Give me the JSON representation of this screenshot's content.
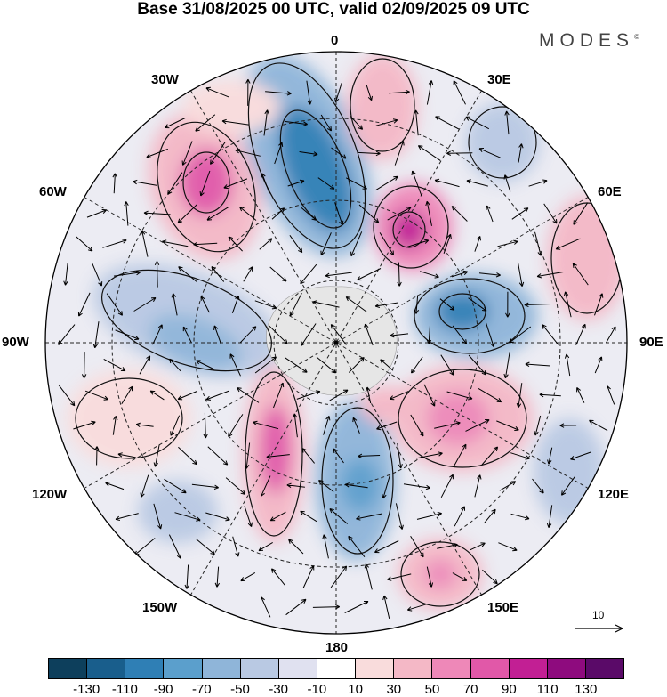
{
  "title": "Base 31/08/2025 00 UTC, valid 02/09/2025 09 UTC",
  "brand": "MODES",
  "brand_mark": "©",
  "longitude_labels": {
    "top": "0",
    "top_right": "30E",
    "right_upper": "60E",
    "right": "90E",
    "right_lower": "120E",
    "bottom_right": "150E",
    "bottom": "180",
    "bottom_left": "150W",
    "left_lower": "120W",
    "left": "90W",
    "left_upper": "60W",
    "top_left": "30W"
  },
  "reference_vector_label": "10",
  "colorbar": {
    "colors": [
      "#0d3f5c",
      "#195e8c",
      "#2f7fb5",
      "#5b9fcc",
      "#8fb5d9",
      "#b9c9e3",
      "#e0e1f0",
      "#ffffff",
      "#f9dcdc",
      "#f4b8c6",
      "#ee88b8",
      "#e158a8",
      "#c21f94",
      "#8e0b7e",
      "#5a0a68"
    ],
    "tick_labels": [
      "-130",
      "-110",
      "-90",
      "-70",
      "-50",
      "-30",
      "-10",
      "10",
      "30",
      "50",
      "70",
      "90",
      "110",
      "130"
    ]
  },
  "map_colors": {
    "background": "#ececf3",
    "pole_cap": "#e6e6e6",
    "grid": "#222222",
    "contour": "#111111",
    "arrow": "#000000"
  }
}
